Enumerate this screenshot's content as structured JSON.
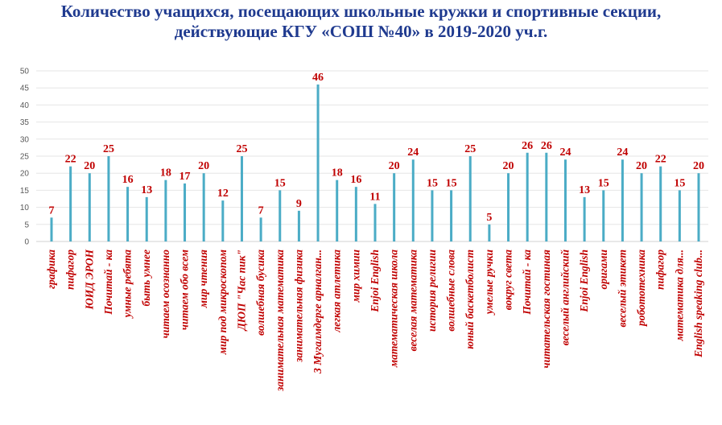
{
  "chart_data": {
    "type": "bar",
    "title_line1": "Количество учащихся, посещающих школьные кружки и спортивные секции,",
    "title_line2": "действующие КГУ «СОШ №40» в 2019-2020 уч.г.",
    "xlabel": "",
    "ylabel": "",
    "ylim": [
      0,
      50
    ],
    "yticks": [
      "0",
      "5",
      "10",
      "15",
      "20",
      "25",
      "30",
      "35",
      "40",
      "45",
      "50"
    ],
    "grid": true,
    "bar_color": "#4bacc6",
    "label_color": "#c00000",
    "categories": [
      "графика",
      "пифагор",
      "ЮИД ЭРОН",
      "Почитай - ка",
      "умные ребята",
      "быть умнее",
      "читаем осознанно",
      "читаем обо всем",
      "мир чтения",
      "мир под микроскопом",
      "ДЮП \"Час пик\"",
      "волшебная бусика",
      "занимательная математика",
      "занимательная физика",
      "3 Мугалмдерге арналган...",
      "легкая атлетика",
      "мир химии",
      "Enjoi English",
      "математическая школа",
      "веселая математика",
      "история религии",
      "волшебные слова",
      "юный баскетболист",
      "умелые ручки",
      "вокруг света",
      "Почитай - ка",
      "читательская гостиная",
      "веселый английский",
      "Enjoi English",
      "оригами",
      "веселый этикет",
      "робототехника",
      "пифагор",
      "математика для...",
      "English speaking club..."
    ],
    "values": [
      7,
      22,
      20,
      25,
      16,
      13,
      18,
      17,
      20,
      12,
      25,
      7,
      15,
      9,
      46,
      18,
      16,
      11,
      20,
      24,
      15,
      15,
      25,
      5,
      20,
      26,
      26,
      24,
      13,
      15,
      24,
      20,
      22,
      15,
      20
    ]
  }
}
